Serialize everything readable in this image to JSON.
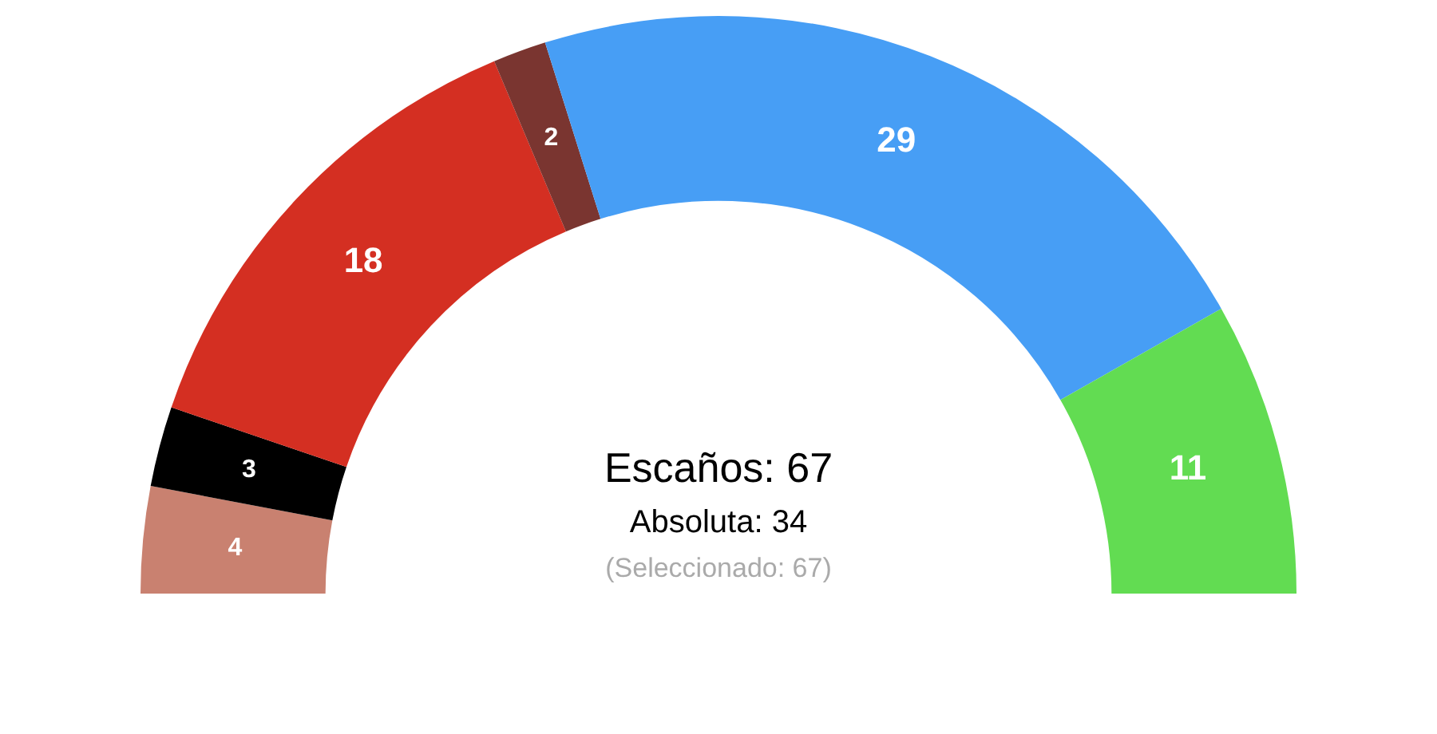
{
  "chart_data": {
    "type": "donut",
    "categories": [
      null,
      null,
      null,
      null,
      null,
      null
    ],
    "values": [
      4,
      3,
      18,
      2,
      29,
      11
    ],
    "colors": [
      "#c98170",
      "#000000",
      "#d42f22",
      "#7a3530",
      "#479ef5",
      "#62dc52"
    ],
    "data_labels": true,
    "legend": false,
    "annotations": [
      "Escaños: 67",
      "Absoluta: 34",
      "(Seleccionado: 67)"
    ]
  }
}
